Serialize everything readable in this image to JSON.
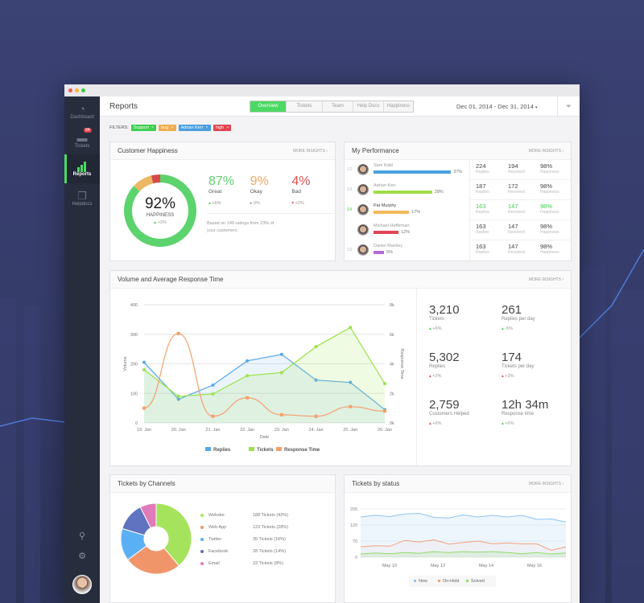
{
  "sidebar": {
    "items": [
      {
        "label": "Dashboard",
        "icon": "gauge-icon"
      },
      {
        "label": "Tickets",
        "icon": "inbox-icon",
        "badge": "94"
      },
      {
        "label": "Reports",
        "icon": "bar-chart-icon",
        "active": true
      },
      {
        "label": "Helpdocs",
        "icon": "docs-icon"
      }
    ],
    "bottom_icons": [
      "search-icon",
      "gear-icon",
      "avatar"
    ]
  },
  "header": {
    "title": "Reports",
    "tabs": [
      "Overview",
      "Tickets",
      "Team",
      "Help Docs",
      "Happiness"
    ],
    "active_tab": "Overview",
    "date_range": "Dec 01, 2014 - Dec 31, 2014",
    "date_caret": "▾"
  },
  "filters": {
    "label": "FILTERS:",
    "chips": [
      {
        "label": "Support",
        "color": "#3ccf4e"
      },
      {
        "label": "bug",
        "color": "#f0ad4e"
      },
      {
        "label": "Adrian Kerr",
        "color": "#4a9fe0"
      },
      {
        "label": "high",
        "color": "#e0454f"
      }
    ],
    "remove": "×"
  },
  "happiness": {
    "title": "Customer Happiness",
    "more": "MORE INSIGHTS ›",
    "score": "92%",
    "score_label": "HAPPINESS",
    "score_delta": "+3%",
    "stats": [
      {
        "value": "87%",
        "label": "Great",
        "delta": "+6%",
        "color": "#5fd36f",
        "share": 87
      },
      {
        "value": "9%",
        "label": "Okay",
        "delta": "0%",
        "color": "#f2a766",
        "share": 9
      },
      {
        "value": "4%",
        "label": "Bad",
        "delta": "+2%",
        "color": "#d9534f",
        "share": 4
      }
    ],
    "note": "Based on 149 ratings from 23% of your customers"
  },
  "performance": {
    "title": "My Performance",
    "more": "MORE INSIGHTS ›",
    "labels": [
      "Replies",
      "Resolved",
      "Happiness"
    ],
    "rows": [
      {
        "rank": "12",
        "name": "Sam Kidd",
        "pct": "37%",
        "share": 37,
        "color": "#4aa3e0",
        "replies": "224",
        "resolved": "194",
        "happiness": "98%"
      },
      {
        "rank": "13",
        "name": "Adrian Kerr",
        "pct": "28%",
        "share": 28,
        "color": "#9fdc4a",
        "replies": "187",
        "resolved": "172",
        "happiness": "98%"
      },
      {
        "rank": "14",
        "name": "Pat Murphy",
        "pct": "17%",
        "share": 17,
        "color": "#f2b85a",
        "replies": "163",
        "resolved": "147",
        "happiness": "98%",
        "highlight": true
      },
      {
        "rank": "",
        "name": "Michael Heffernan",
        "pct": "12%",
        "share": 12,
        "color": "#e04455",
        "replies": "163",
        "resolved": "147",
        "happiness": "98%"
      },
      {
        "rank": "13",
        "name": "Daniel Mackey",
        "pct": "5%",
        "share": 5,
        "color": "#b46ad6",
        "replies": "163",
        "resolved": "147",
        "happiness": "98%"
      }
    ]
  },
  "volume": {
    "title": "Volume and Average Response Time",
    "more": "MORE INSIGHTS ›",
    "kpis": [
      {
        "value": "3,210",
        "label": "Tickets",
        "delta": "+6%",
        "up": true
      },
      {
        "value": "261",
        "label": "Replies per day",
        "delta": "-5%",
        "up": true
      },
      {
        "value": "5,302",
        "label": "Replies",
        "delta": "+2%",
        "up": false
      },
      {
        "value": "174",
        "label": "Tickets per day",
        "delta": "+3%",
        "up": false
      },
      {
        "value": "2,759",
        "label": "Customers Helped",
        "delta": "+6%",
        "up": false
      },
      {
        "value": "12h 34m",
        "label": "Response time",
        "delta": "+6%",
        "up": true
      }
    ]
  },
  "chart_data": [
    {
      "type": "line",
      "categories": [
        "19. Jan",
        "20. Jan",
        "21. Jan",
        "22. Jan",
        "23. Jan",
        "24. Jan",
        "25. Jan",
        "26. Jan"
      ],
      "xlabel": "Date",
      "ylabel": "Volume",
      "y2label": "Response Time",
      "ylim": [
        0,
        400
      ],
      "yticks": [
        "0",
        "100",
        "200",
        "300",
        "400"
      ],
      "y2lim": [
        0,
        8
      ],
      "y2ticks": [
        "0k",
        "2k",
        "4k",
        "6k",
        "8k"
      ],
      "grid": true,
      "legend": "bottom",
      "series": [
        {
          "name": "Replies",
          "axis": "left",
          "color": "#5aa7e8",
          "values": [
            205,
            80,
            128,
            210,
            232,
            145,
            137,
            45
          ]
        },
        {
          "name": "Tickets",
          "axis": "left",
          "color": "#9be24a",
          "values": [
            180,
            90,
            98,
            160,
            170,
            258,
            323,
            133
          ]
        },
        {
          "name": "Response Time",
          "axis": "right",
          "color": "#f4a06e",
          "values": [
            1.0,
            6.05,
            0.45,
            1.7,
            0.55,
            0.45,
            1.1,
            0.8
          ]
        }
      ]
    },
    {
      "type": "pie",
      "title": "Tickets by Channels",
      "legend": "right",
      "slices": [
        {
          "name": "Website",
          "text": "188 Tickets (42%)",
          "value": 42,
          "color": "#a6e35c"
        },
        {
          "name": "Web App",
          "text": "123 Tickets (28%)",
          "value": 28,
          "color": "#f0956a"
        },
        {
          "name": "Twitter",
          "text": "35 Tickets (16%)",
          "value": 16,
          "color": "#5ab0f5"
        },
        {
          "name": "Facebook",
          "text": "28 Tickets (14%)",
          "value": 14,
          "color": "#5f73c0"
        },
        {
          "name": "Email",
          "text": "22 Tickets (8%)",
          "value": 8,
          "color": "#e07ab8"
        }
      ]
    },
    {
      "type": "area",
      "title": "Tickets by status",
      "more": "MORE INSIGHTS ›",
      "yticks": [
        0,
        70,
        120,
        200
      ],
      "xticks": [
        "May 10",
        "May 12",
        "May 14",
        "May 16"
      ],
      "legend": "bottom",
      "series": [
        {
          "name": "New",
          "color": "#8fc4f0",
          "values": [
            160,
            168,
            162,
            175,
            178,
            158,
            155,
            170,
            160,
            168,
            160,
            168,
            148,
            150,
            135
          ]
        },
        {
          "name": "On-Hold",
          "color": "#f4a07a",
          "values": [
            45,
            50,
            48,
            72,
            66,
            74,
            57,
            64,
            70,
            58,
            62,
            58,
            58,
            30,
            45
          ]
        },
        {
          "name": "Solved",
          "color": "#8ddc6a",
          "values": [
            14,
            18,
            15,
            20,
            17,
            24,
            20,
            24,
            22,
            24,
            20,
            15,
            20,
            14,
            18
          ]
        }
      ]
    }
  ]
}
